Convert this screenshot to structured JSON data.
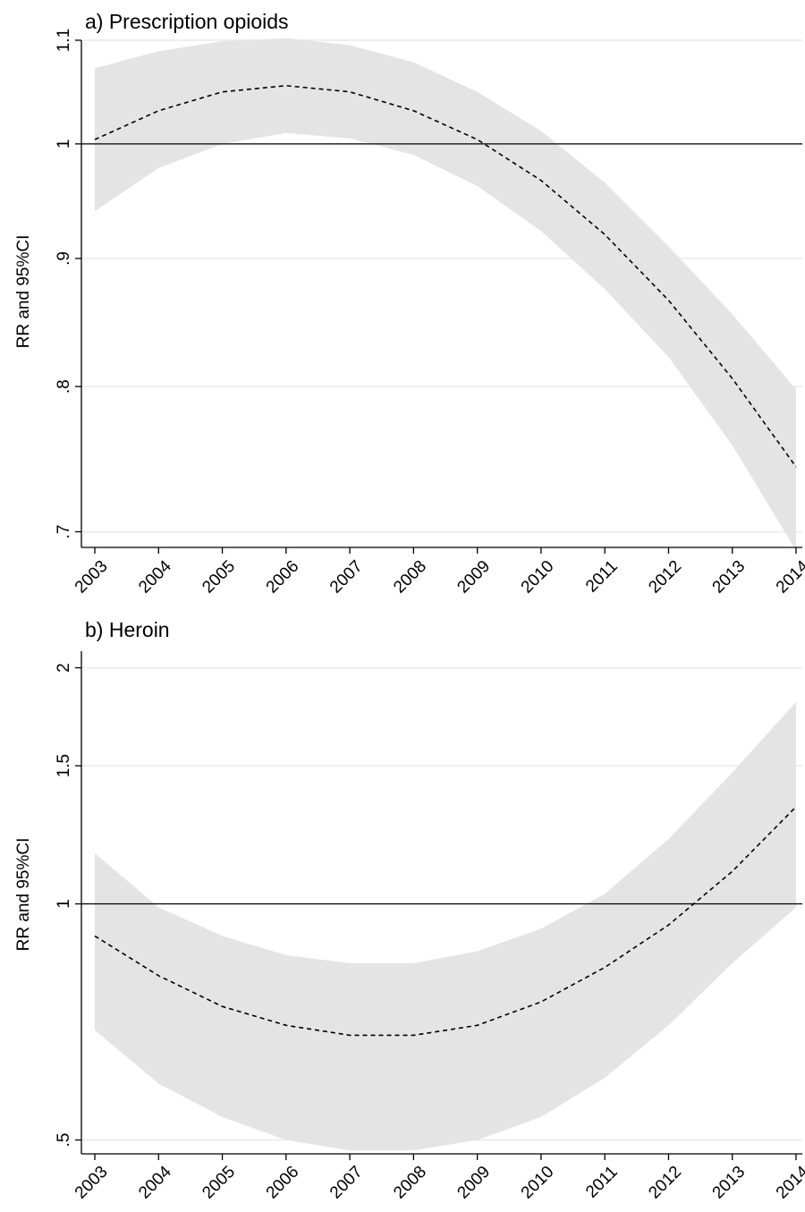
{
  "chart_data": [
    {
      "type": "line",
      "title": "a) Prescription opioids",
      "ylabel": "RR and 95%CI",
      "xlabel": "",
      "y_scale": "log",
      "ylim": [
        0.69,
        1.1
      ],
      "yticks": [
        0.7,
        0.8,
        0.9,
        1,
        1.1
      ],
      "ytick_labels": [
        ".7",
        ".8",
        ".9",
        "1",
        "1.1"
      ],
      "reference_line": 1,
      "grid": true,
      "x": [
        "2003",
        "2004",
        "2005",
        "2006",
        "2007",
        "2008",
        "2009",
        "2010",
        "2011",
        "2012",
        "2013",
        "2014"
      ],
      "estimate": [
        1.004,
        1.031,
        1.049,
        1.055,
        1.049,
        1.031,
        1.004,
        0.967,
        0.92,
        0.866,
        0.806,
        0.743
      ],
      "ci_lower": [
        0.94,
        0.978,
        1.0,
        1.01,
        1.005,
        0.99,
        0.962,
        0.923,
        0.875,
        0.822,
        0.758,
        0.688
      ],
      "ci_upper": [
        1.072,
        1.089,
        1.099,
        1.102,
        1.095,
        1.078,
        1.049,
        1.012,
        0.965,
        0.91,
        0.855,
        0.798
      ]
    },
    {
      "type": "line",
      "title": "b) Heroin",
      "ylabel": "RR and 95%CI",
      "xlabel": "",
      "y_scale": "log",
      "ylim": [
        0.48,
        2.1
      ],
      "yticks": [
        0.5,
        1,
        1.5,
        2
      ],
      "ytick_labels": [
        ".5",
        "1",
        "1.5",
        "2"
      ],
      "reference_line": 1,
      "grid": true,
      "x": [
        "2003",
        "2004",
        "2005",
        "2006",
        "2007",
        "2008",
        "2009",
        "2010",
        "2011",
        "2012",
        "2013",
        "2014"
      ],
      "estimate": [
        0.91,
        0.81,
        0.74,
        0.7,
        0.68,
        0.68,
        0.7,
        0.75,
        0.83,
        0.94,
        1.1,
        1.33
      ],
      "ci_lower": [
        0.69,
        0.59,
        0.535,
        0.5,
        0.485,
        0.485,
        0.5,
        0.535,
        0.6,
        0.7,
        0.84,
        0.99
      ],
      "ci_upper": [
        1.16,
        0.99,
        0.91,
        0.86,
        0.84,
        0.84,
        0.87,
        0.93,
        1.03,
        1.21,
        1.47,
        1.81
      ]
    }
  ],
  "colors": {
    "ci_band": "#e4e4e4",
    "gridline": "#e9e9e9",
    "estimate_line": "#000000",
    "reference_line": "#000000",
    "axis": "#000000"
  }
}
